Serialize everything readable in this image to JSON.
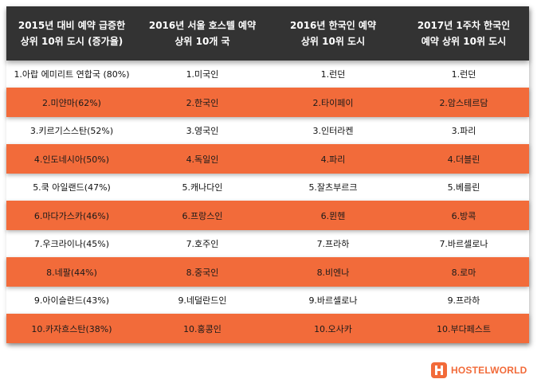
{
  "headers": [
    "2015년 대비 예약 급증한\n상위 10위 도시 (증가율)",
    "2016년 서울 호스텔 예약\n상위 10개 국",
    "2016년 한국인 예약\n상위 10위 도시",
    "2017년 1주차 한국인\n예약 상위 10위 도시"
  ],
  "rows": [
    [
      "1.아랍 에미리트 연합국 (80%)",
      "1.미국인",
      "1.런던",
      "1.런던"
    ],
    [
      "2.미얀마(62%)",
      "2.한국인",
      "2.타이페이",
      "2.암스테르담"
    ],
    [
      "3.키르기스스탄(52%)",
      "3.영국인",
      "3.인터라켄",
      "3.파리"
    ],
    [
      "4.인도네시아(50%)",
      "4.독일인",
      "4.파리",
      "4.더블린"
    ],
    [
      "5.쿡 아일랜드(47%)",
      "5.캐나다인",
      "5.잘츠부르크",
      "5.베를린"
    ],
    [
      "6.마다가스카(46%)",
      "6.프랑스인",
      "6.뮌헨",
      "6.방콕"
    ],
    [
      "7.우크라이나(45%)",
      "7.호주인",
      "7.프라하",
      "7.바르셀로나"
    ],
    [
      "8.네팔(44%)",
      "8.중국인",
      "8.비엔나",
      "8.로마"
    ],
    [
      "9.아이슬란드(43%)",
      "9.네덜란드인",
      "9.바르셀로나",
      "9.프라하"
    ],
    [
      "10.카자흐스탄(38%)",
      "10.홍콩인",
      "10.오사카",
      "10.부다페스트"
    ]
  ],
  "brand": {
    "name": "HOSTELWORLD",
    "icon": "hostelworld-logo-icon",
    "accent_color": "#f26b3a",
    "header_color": "#333333"
  }
}
